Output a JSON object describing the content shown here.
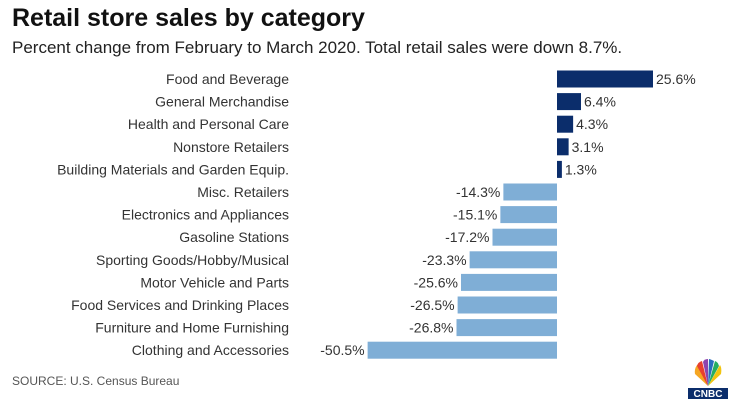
{
  "title": "Retail store sales by category",
  "subtitle": "Percent change from February to March 2020. Total retail sales were down 8.7%.",
  "source": "SOURCE: U.S. Census Bureau",
  "logo": {
    "icon": "cnbc-peacock-logo",
    "text": "CNBC"
  },
  "colors": {
    "positive": "#0b2d6b",
    "negative": "#7faed6"
  },
  "chart_data": {
    "type": "bar",
    "orientation": "horizontal",
    "categories": [
      "Food and Beverage",
      "General Merchandise",
      "Health and Personal Care",
      "Nonstore Retailers",
      "Building Materials and Garden Equip.",
      "Misc. Retailers",
      "Electronics and Appliances",
      "Gasoline Stations",
      "Sporting Goods/Hobby/Musical",
      "Motor Vehicle and Parts",
      "Food Services and Drinking Places",
      "Furniture and Home Furnishing",
      "Clothing and Accessories"
    ],
    "values": [
      25.6,
      6.4,
      4.3,
      3.1,
      1.3,
      -14.3,
      -15.1,
      -17.2,
      -23.3,
      -25.6,
      -26.5,
      -26.8,
      -50.5
    ],
    "value_labels": [
      "25.6%",
      "6.4%",
      "4.3%",
      "3.1%",
      "1.3%",
      "-14.3%",
      "-15.1%",
      "-17.2%",
      "-23.3%",
      "-25.6%",
      "-26.5%",
      "-26.8%",
      "-50.5%"
    ],
    "xlim": [
      -50.5,
      25.6
    ],
    "grid": false,
    "legend": "none"
  }
}
